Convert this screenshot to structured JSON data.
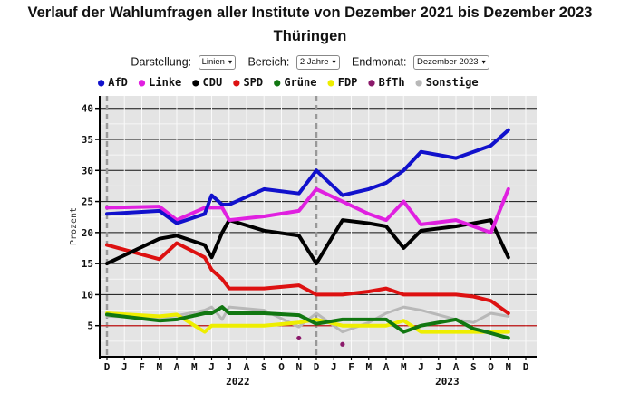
{
  "page": {
    "title": "Verlauf der Wahlumfragen aller Institute von Dezember 2021 bis Dezember 2023",
    "subtitle": "Thüringen"
  },
  "controls": {
    "darstellung": {
      "label": "Darstellung:",
      "value": "Linien"
    },
    "bereich": {
      "label": "Bereich:",
      "value": "2 Jahre"
    },
    "endmonat": {
      "label": "Endmonat:",
      "value": "Dezember 2023"
    }
  },
  "legend": [
    {
      "name": "AfD",
      "color": "#1111cc"
    },
    {
      "name": "Linke",
      "color": "#e020e0"
    },
    {
      "name": "CDU",
      "color": "#000000"
    },
    {
      "name": "SPD",
      "color": "#dd1111"
    },
    {
      "name": "Grüne",
      "color": "#117711"
    },
    {
      "name": "FDP",
      "color": "#eeee00"
    },
    {
      "name": "BfTh",
      "color": "#8b1a6b"
    },
    {
      "name": "Sonstige",
      "color": "#b8b8b8"
    }
  ],
  "chart_data": {
    "type": "line",
    "ylabel": "Prozent",
    "ylim": [
      0,
      42
    ],
    "yticks": [
      5,
      10,
      15,
      20,
      25,
      30,
      35,
      40
    ],
    "months": [
      "D",
      "J",
      "F",
      "M",
      "A",
      "M",
      "J",
      "J",
      "A",
      "S",
      "O",
      "N",
      "D",
      "J",
      "F",
      "M",
      "A",
      "M",
      "J",
      "J",
      "A",
      "S",
      "O",
      "N",
      "D"
    ],
    "years": [
      {
        "label": "2022",
        "month_index": 7
      },
      {
        "label": "2023",
        "month_index": 19
      }
    ],
    "reference_line": 5,
    "series": [
      {
        "name": "AfD",
        "color": "#1111cc",
        "points": [
          [
            0,
            23
          ],
          [
            3,
            23.5
          ],
          [
            4,
            21.5
          ],
          [
            5.6,
            23
          ],
          [
            6,
            26
          ],
          [
            6.6,
            24.5
          ],
          [
            7,
            24.5
          ],
          [
            9,
            27
          ],
          [
            11,
            26.3
          ],
          [
            12,
            30
          ],
          [
            13.5,
            26
          ],
          [
            15,
            27
          ],
          [
            16,
            28
          ],
          [
            17,
            30
          ],
          [
            18,
            33
          ],
          [
            20,
            32
          ],
          [
            21,
            33
          ],
          [
            22,
            34
          ],
          [
            23,
            36.5
          ]
        ]
      },
      {
        "name": "Linke",
        "color": "#e020e0",
        "points": [
          [
            0,
            24
          ],
          [
            3,
            24.2
          ],
          [
            4,
            22
          ],
          [
            5.6,
            24
          ],
          [
            6.6,
            24
          ],
          [
            7,
            22
          ],
          [
            9,
            22.6
          ],
          [
            11,
            23.5
          ],
          [
            12,
            27
          ],
          [
            13.5,
            25
          ],
          [
            15,
            23
          ],
          [
            16,
            22
          ],
          [
            17,
            25
          ],
          [
            18,
            21.3
          ],
          [
            20,
            22
          ],
          [
            21,
            21
          ],
          [
            22,
            20
          ],
          [
            23,
            27
          ]
        ]
      },
      {
        "name": "CDU",
        "color": "#000000",
        "points": [
          [
            0,
            15
          ],
          [
            3,
            19
          ],
          [
            4,
            19.5
          ],
          [
            5.6,
            18
          ],
          [
            6,
            16
          ],
          [
            6.6,
            20
          ],
          [
            7,
            22
          ],
          [
            9,
            20.3
          ],
          [
            11,
            19.5
          ],
          [
            12,
            15
          ],
          [
            13.5,
            22
          ],
          [
            15,
            21.5
          ],
          [
            16,
            21
          ],
          [
            17,
            17.5
          ],
          [
            18,
            20.3
          ],
          [
            20,
            21
          ],
          [
            21,
            21.5
          ],
          [
            22,
            22
          ],
          [
            23,
            16
          ]
        ]
      },
      {
        "name": "SPD",
        "color": "#dd1111",
        "points": [
          [
            0,
            18
          ],
          [
            3,
            15.7
          ],
          [
            4,
            18.3
          ],
          [
            5.6,
            16
          ],
          [
            6,
            14
          ],
          [
            6.6,
            12.5
          ],
          [
            7,
            11
          ],
          [
            9,
            11
          ],
          [
            11,
            11.5
          ],
          [
            12,
            10
          ],
          [
            13.5,
            10
          ],
          [
            15,
            10.5
          ],
          [
            16,
            11
          ],
          [
            17,
            10
          ],
          [
            18,
            10
          ],
          [
            20,
            10
          ],
          [
            21,
            9.7
          ],
          [
            22,
            9
          ],
          [
            23,
            7
          ]
        ]
      },
      {
        "name": "Grüne",
        "color": "#117711",
        "points": [
          [
            0,
            6.8
          ],
          [
            3,
            5.8
          ],
          [
            4,
            6
          ],
          [
            5.6,
            7
          ],
          [
            6,
            7
          ],
          [
            6.6,
            8
          ],
          [
            7,
            7
          ],
          [
            9,
            7
          ],
          [
            11,
            6.7
          ],
          [
            12,
            5.3
          ],
          [
            13.5,
            6
          ],
          [
            15,
            6
          ],
          [
            16,
            6
          ],
          [
            17,
            4
          ],
          [
            18,
            5
          ],
          [
            20,
            6
          ],
          [
            21,
            4.5
          ],
          [
            22,
            3.8
          ],
          [
            23,
            3
          ]
        ]
      },
      {
        "name": "FDP",
        "color": "#eeee00",
        "points": [
          [
            0,
            7
          ],
          [
            3,
            6.5
          ],
          [
            4,
            6.8
          ],
          [
            5.6,
            4
          ],
          [
            6,
            5
          ],
          [
            6.6,
            5
          ],
          [
            7,
            5
          ],
          [
            9,
            5
          ],
          [
            11,
            5.5
          ],
          [
            12,
            6
          ],
          [
            13.5,
            5
          ],
          [
            15,
            5
          ],
          [
            16,
            5
          ],
          [
            17,
            5.8
          ],
          [
            18,
            4
          ],
          [
            20,
            4
          ],
          [
            21,
            4
          ],
          [
            22,
            4
          ],
          [
            23,
            4
          ]
        ]
      },
      {
        "name": "Sonstige",
        "color": "#b8b8b8",
        "points": [
          [
            0,
            6.5
          ],
          [
            3,
            6.3
          ],
          [
            4,
            6.6
          ],
          [
            5.6,
            7.5
          ],
          [
            6,
            8
          ],
          [
            6.6,
            6
          ],
          [
            7,
            8
          ],
          [
            9,
            7.5
          ],
          [
            11,
            4.8
          ],
          [
            12,
            7
          ],
          [
            13.5,
            4
          ],
          [
            15,
            5.5
          ],
          [
            16,
            7
          ],
          [
            17,
            8
          ],
          [
            18,
            7.5
          ],
          [
            20,
            6
          ],
          [
            21,
            5.5
          ],
          [
            22,
            7
          ],
          [
            23,
            6.5
          ]
        ]
      }
    ],
    "bfth_points": [
      [
        11,
        3
      ],
      [
        13.5,
        2
      ]
    ]
  }
}
